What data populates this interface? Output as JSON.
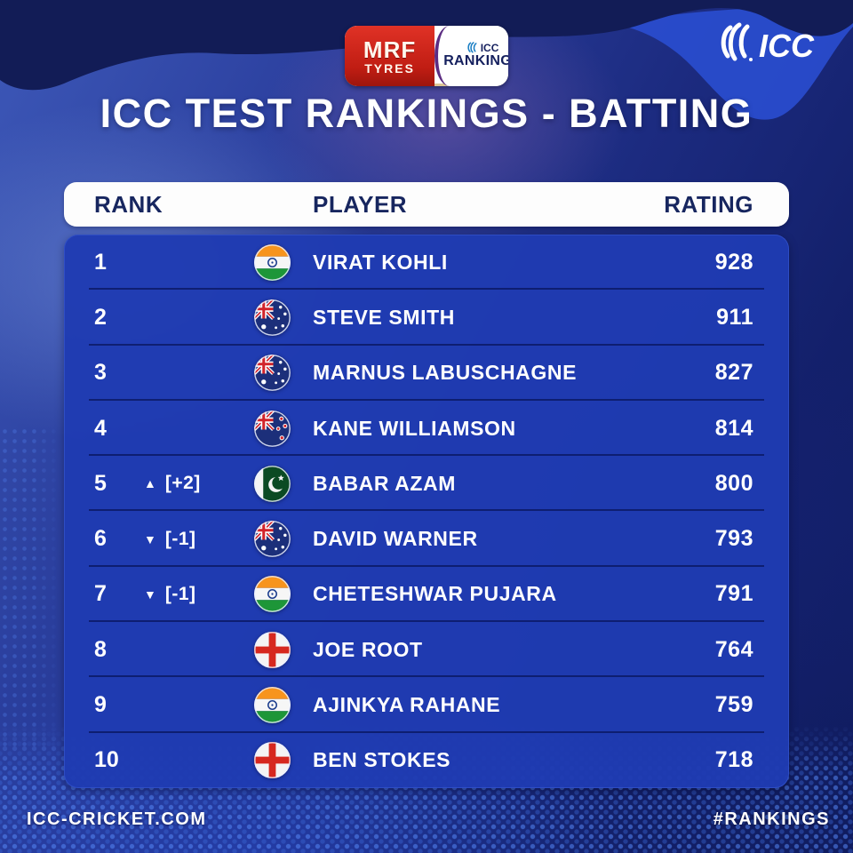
{
  "brand": {
    "mrf_line1": "MRF",
    "mrf_line2": "TYRES",
    "badge_icc": "ICC",
    "badge_rankings": "RANKINGS",
    "corner_logo_text": "ICC"
  },
  "title": "ICC TEST RANKINGS - BATTING",
  "table": {
    "headers": {
      "rank": "RANK",
      "player": "PLAYER",
      "rating": "RATING"
    },
    "rows": [
      {
        "rank": "1",
        "movement_dir": "",
        "movement": "",
        "flag": "india",
        "player": "VIRAT KOHLI",
        "rating": "928"
      },
      {
        "rank": "2",
        "movement_dir": "",
        "movement": "",
        "flag": "australia",
        "player": "STEVE SMITH",
        "rating": "911"
      },
      {
        "rank": "3",
        "movement_dir": "",
        "movement": "",
        "flag": "australia",
        "player": "MARNUS LABUSCHAGNE",
        "rating": "827"
      },
      {
        "rank": "4",
        "movement_dir": "",
        "movement": "",
        "flag": "new-zealand",
        "player": "KANE WILLIAMSON",
        "rating": "814"
      },
      {
        "rank": "5",
        "movement_dir": "up",
        "movement": "[+2]",
        "flag": "pakistan",
        "player": "BABAR AZAM",
        "rating": "800"
      },
      {
        "rank": "6",
        "movement_dir": "down",
        "movement": "[-1]",
        "flag": "australia",
        "player": "DAVID WARNER",
        "rating": "793"
      },
      {
        "rank": "7",
        "movement_dir": "down",
        "movement": "[-1]",
        "flag": "india",
        "player": "CHETESHWAR PUJARA",
        "rating": "791"
      },
      {
        "rank": "8",
        "movement_dir": "",
        "movement": "",
        "flag": "england",
        "player": "JOE ROOT",
        "rating": "764"
      },
      {
        "rank": "9",
        "movement_dir": "",
        "movement": "",
        "flag": "india",
        "player": "AJINKYA RAHANE",
        "rating": "759"
      },
      {
        "rank": "10",
        "movement_dir": "",
        "movement": "",
        "flag": "england",
        "player": "BEN STOKES",
        "rating": "718"
      }
    ]
  },
  "footer": {
    "left": "ICC-CRICKET.COM",
    "right": "#RANKINGS"
  },
  "colors": {
    "row_blue": "#1f3bb2",
    "separator": "#0a165c",
    "page_navy": "#13206a",
    "top_wave_navy": "#121c56",
    "bright_wave_blue": "#2a4ed0",
    "header_bar": "#fdfdfd",
    "header_text": "#17265f",
    "mrf_red": "#c01d13",
    "badge_purple": "#5c2d82",
    "text_white": "#ffffff"
  },
  "chart_data": {
    "type": "table",
    "title": "ICC TEST RANKINGS - BATTING",
    "columns": [
      "RANK",
      "PLAYER",
      "RATING"
    ],
    "categories": [
      "VIRAT KOHLI",
      "STEVE SMITH",
      "MARNUS LABUSCHAGNE",
      "KANE WILLIAMSON",
      "BABAR AZAM",
      "DAVID WARNER",
      "CHETESHWAR PUJARA",
      "JOE ROOT",
      "AJINKYA RAHANE",
      "BEN STOKES"
    ],
    "values": [
      928,
      911,
      827,
      814,
      800,
      793,
      791,
      764,
      759,
      718
    ],
    "ranks": [
      1,
      2,
      3,
      4,
      5,
      6,
      7,
      8,
      9,
      10
    ],
    "countries": [
      "India",
      "Australia",
      "Australia",
      "New Zealand",
      "Pakistan",
      "Australia",
      "India",
      "England",
      "India",
      "England"
    ],
    "rank_changes": [
      null,
      null,
      null,
      null,
      "+2",
      "-1",
      "-1",
      null,
      null,
      null
    ]
  }
}
